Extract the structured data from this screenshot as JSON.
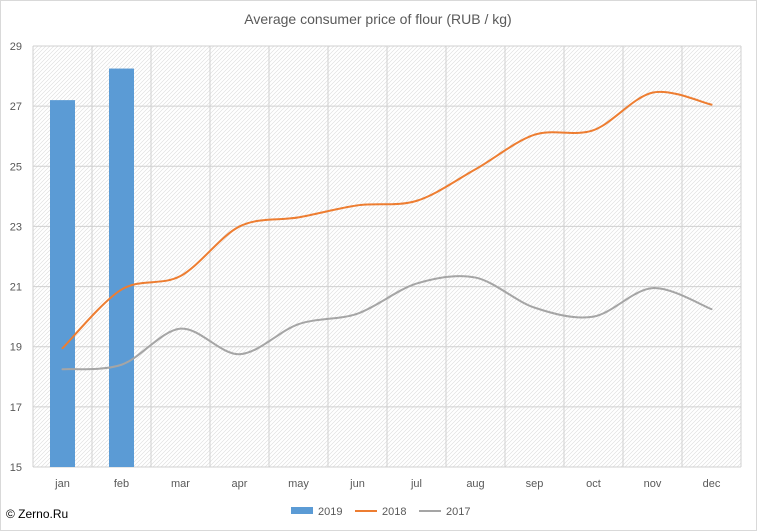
{
  "watermark": "© Zerno.Ru",
  "chart_data": {
    "type": "bar+line",
    "title": "Average consumer price of flour (RUB / kg)",
    "xlabel": "",
    "ylabel": "",
    "categories": [
      "jan",
      "feb",
      "mar",
      "apr",
      "may",
      "jun",
      "jul",
      "aug",
      "sep",
      "oct",
      "nov",
      "dec"
    ],
    "ylim": [
      15,
      29
    ],
    "yticks": [
      15,
      17,
      19,
      21,
      23,
      25,
      27,
      29
    ],
    "grid": true,
    "legend_position": "bottom",
    "series": [
      {
        "name": "2019",
        "type": "bar",
        "color": "#5b9bd5",
        "values": [
          27.2,
          28.25,
          null,
          null,
          null,
          null,
          null,
          null,
          null,
          null,
          null,
          null
        ]
      },
      {
        "name": "2018",
        "type": "line",
        "color": "#ed7d31",
        "values": [
          18.95,
          20.9,
          21.35,
          23.0,
          23.3,
          23.7,
          23.85,
          24.9,
          26.05,
          26.2,
          27.45,
          27.05
        ]
      },
      {
        "name": "2017",
        "type": "line",
        "color": "#a5a5a5",
        "values": [
          18.25,
          18.4,
          19.6,
          18.75,
          19.75,
          20.1,
          21.1,
          21.3,
          20.3,
          20.0,
          20.95,
          20.25
        ]
      }
    ]
  }
}
